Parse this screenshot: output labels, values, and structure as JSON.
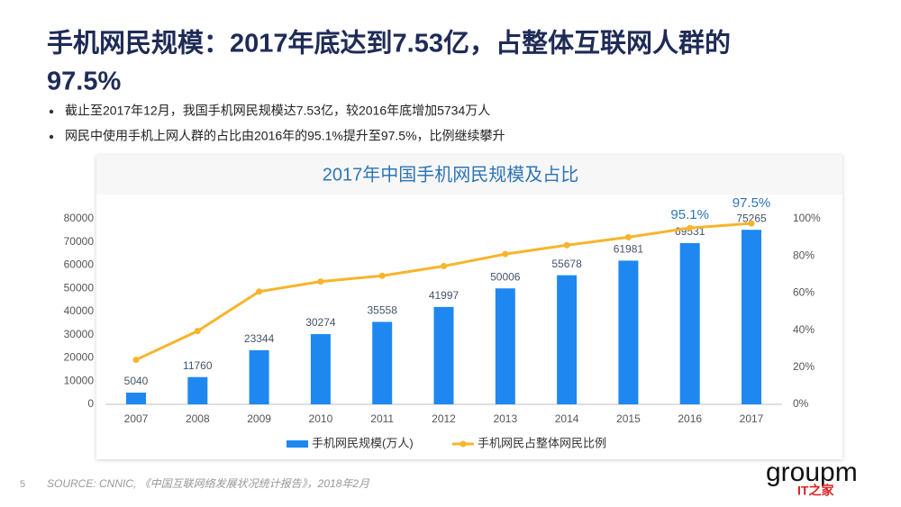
{
  "slide": {
    "title_lines": [
      "手机网民规模：2017年底达到7.53亿，占整体互联网人群的",
      "97.5%"
    ],
    "bullets": [
      "截止至2017年12月，我国手机网民规模达7.53亿，较2016年底增加5734万人",
      "网民中使用手机上网人群的占比由2016年的95.1%提升至97.5%，比例继续攀升"
    ],
    "source": "SOURCE: CNNIC, 《中国互联网络发展状况统计报告》，2018年2月",
    "page_number": "5",
    "logo": "groupm",
    "logo_sub": "IT之家"
  },
  "chart_data": {
    "type": "bar-line",
    "title": "2017年中国手机网民规模及占比",
    "categories": [
      "2007",
      "2008",
      "2009",
      "2010",
      "2011",
      "2012",
      "2013",
      "2014",
      "2015",
      "2016",
      "2017"
    ],
    "series": [
      {
        "name": "手机网民规模(万人)",
        "color": "#1e88f0",
        "type": "bar",
        "values": [
          5040,
          11760,
          23344,
          30274,
          35558,
          41997,
          50006,
          55678,
          61981,
          69531,
          75265
        ]
      },
      {
        "name": "手机网民占整体网民比例",
        "color": "#f7b52c",
        "type": "line",
        "axis": "y2",
        "values": [
          24,
          39.5,
          60.8,
          66.2,
          69.3,
          74.5,
          81,
          85.8,
          90.1,
          95.1,
          97.5
        ],
        "value_labels": [
          null,
          null,
          null,
          null,
          null,
          null,
          null,
          null,
          null,
          "95.1%",
          "97.5%"
        ]
      }
    ],
    "ylim": [
      0,
      80000
    ],
    "yticks": [
      0,
      10000,
      20000,
      30000,
      40000,
      50000,
      60000,
      70000,
      80000
    ],
    "y2lim": [
      0,
      100
    ],
    "y2ticks": [
      {
        "value": 0,
        "label": "0%"
      },
      {
        "value": 20,
        "label": "20%"
      },
      {
        "value": 40,
        "label": "40%"
      },
      {
        "value": 60,
        "label": "60%"
      },
      {
        "value": 80,
        "label": "80%"
      },
      {
        "value": 100,
        "label": "100%"
      }
    ],
    "grid": false,
    "legend": "bottom"
  }
}
